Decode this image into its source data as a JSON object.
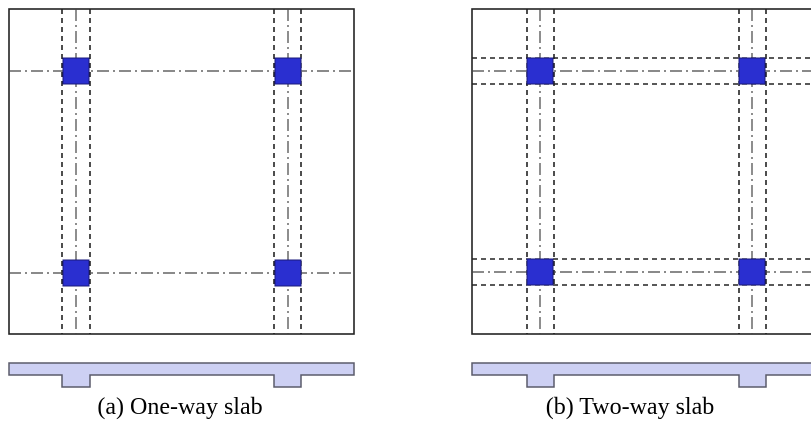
{
  "figure": {
    "panels": [
      {
        "id": "a",
        "caption": "(a) One-way slab",
        "slab_type": "one-way",
        "beam_band_axes": "vertical"
      },
      {
        "id": "b",
        "caption": "(b) Two-way slab",
        "slab_type": "two-way",
        "beam_band_axes": "vertical-and-horizontal"
      }
    ],
    "colors": {
      "column": "#2a2fd0",
      "column_edge": "#1a1a7a",
      "section_fill": "#cdd0f3",
      "section_stroke": "#5a5a6a",
      "line": "#222222"
    }
  }
}
